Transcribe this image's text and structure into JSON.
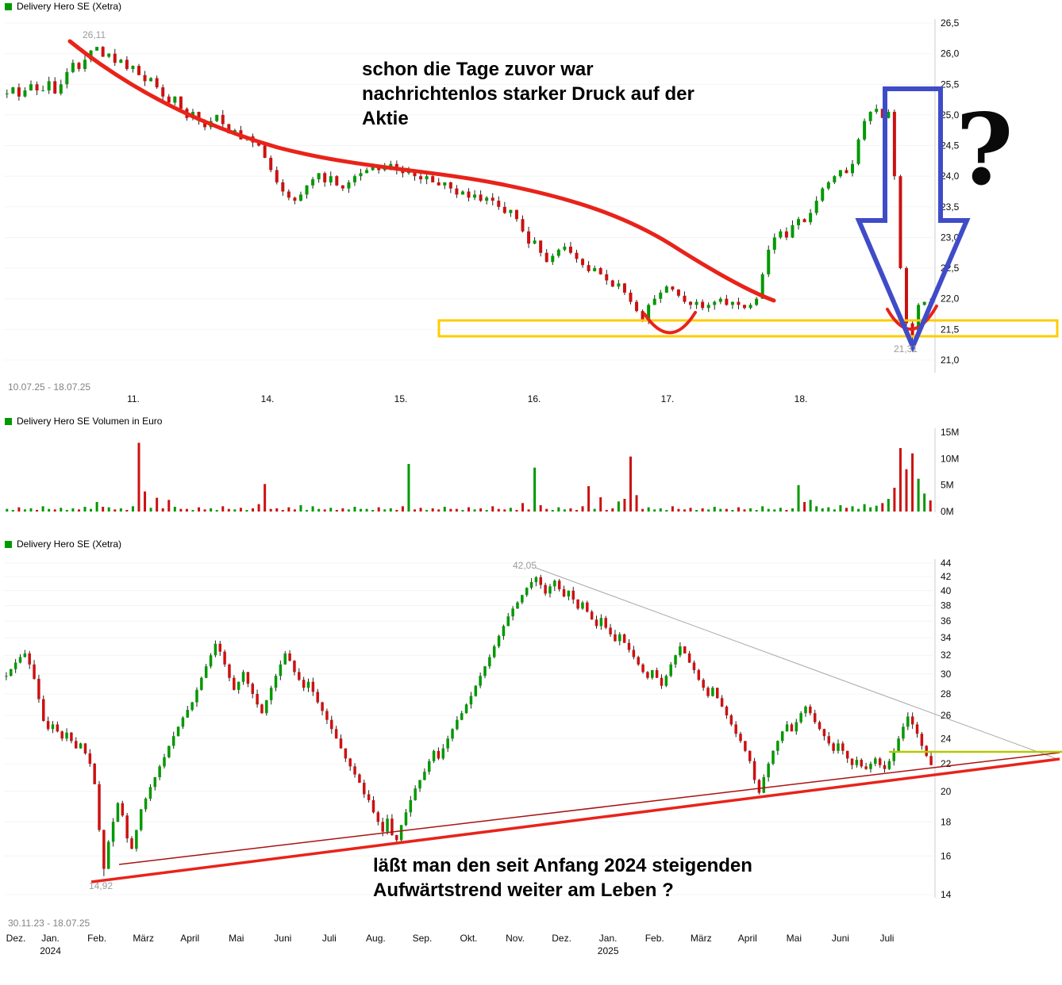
{
  "colors": {
    "candle_up": "#009900",
    "candle_down": "#cc1111",
    "wick": "#222222",
    "trend_curve_red": "#e8231a",
    "v_mark_red": "#e8231a",
    "band_yellow": "#ffcc00",
    "arrow_blue": "#3f4cc8",
    "gray_trendline": "#a8a8a8",
    "rising_red_thick": "#e8231a",
    "rising_red_thin": "#a81212",
    "hline_yellow_green": "#b4c800",
    "axis_line": "#cccccc"
  },
  "annotations": {
    "top_note": {
      "line1": "schon die Tage zuvor war",
      "line2": "nachrichtenlos starker Druck auf der",
      "line3": "Aktie"
    },
    "question_mark": "?",
    "bottom_note": {
      "line1": "läßt man den seit Anfang 2024 steigenden",
      "line2": "Aufwärtstrend weiter am Leben ?"
    }
  },
  "chart_data": [
    {
      "type": "candlestick",
      "title": "Delivery Hero SE (Xetra)",
      "date_range": "10.07.25 - 18.07.25",
      "x_labels": [
        "11.",
        "14.",
        "15.",
        "16.",
        "17.",
        "18."
      ],
      "y_tick_labels": [
        "26,5",
        "26,0",
        "25,5",
        "25,0",
        "24,5",
        "24,0",
        "23,5",
        "23,0",
        "22,5",
        "22,0",
        "21,5",
        "21,0"
      ],
      "ylim": [
        21.0,
        26.5
      ],
      "high_marker": {
        "label": "26,11",
        "value": 26.11
      },
      "low_marker": {
        "label": "21,31",
        "value": 21.31
      },
      "closes": [
        25.35,
        25.45,
        25.3,
        25.4,
        25.5,
        25.4,
        25.4,
        25.55,
        25.35,
        25.5,
        25.7,
        25.85,
        25.75,
        25.9,
        26.05,
        26.11,
        25.95,
        26.0,
        25.85,
        25.9,
        25.75,
        25.8,
        25.65,
        25.55,
        25.6,
        25.45,
        25.3,
        25.2,
        25.3,
        25.1,
        24.95,
        25.05,
        24.9,
        24.8,
        24.9,
        25.0,
        24.85,
        24.7,
        24.75,
        24.6,
        24.65,
        24.55,
        24.5,
        24.3,
        24.1,
        23.9,
        23.75,
        23.65,
        23.6,
        23.7,
        23.85,
        23.95,
        24.05,
        23.9,
        24.0,
        23.85,
        23.8,
        23.9,
        24.0,
        24.05,
        24.1,
        24.15,
        24.1,
        24.15,
        24.2,
        24.1,
        24.05,
        24.1,
        24.0,
        23.95,
        24.0,
        23.9,
        23.85,
        23.9,
        23.8,
        23.7,
        23.75,
        23.65,
        23.7,
        23.6,
        23.65,
        23.6,
        23.5,
        23.4,
        23.45,
        23.3,
        23.1,
        22.9,
        22.95,
        22.75,
        22.6,
        22.7,
        22.8,
        22.85,
        22.75,
        22.65,
        22.55,
        22.45,
        22.5,
        22.4,
        22.3,
        22.2,
        22.25,
        22.1,
        21.95,
        21.8,
        21.65,
        21.9,
        22.0,
        22.1,
        22.2,
        22.15,
        22.05,
        21.95,
        21.9,
        21.95,
        21.85,
        21.9,
        21.95,
        22.0,
        21.9,
        21.95,
        21.9,
        21.85,
        21.9,
        22.0,
        22.4,
        22.8,
        23.0,
        23.1,
        23.0,
        23.2,
        23.3,
        23.25,
        23.4,
        23.6,
        23.8,
        23.9,
        24.0,
        24.1,
        24.05,
        24.2,
        24.6,
        24.9,
        25.05,
        25.1,
        24.95,
        25.05,
        24.0,
        22.5,
        21.6,
        21.4,
        21.9,
        21.95,
        21.9
      ]
    },
    {
      "type": "bar",
      "title": "Delivery Hero SE Volumen in Euro",
      "y_tick_labels": [
        "15M",
        "10M",
        "5M",
        "0M"
      ],
      "ylim_millions": [
        0,
        15
      ],
      "values_millions": [
        0.5,
        0.3,
        0.8,
        0.4,
        0.6,
        0.3,
        1.0,
        0.5,
        0.4,
        0.7,
        0.3,
        0.6,
        0.4,
        0.9,
        0.5,
        1.8,
        0.9,
        0.8,
        0.4,
        0.6,
        0.3,
        1.0,
        13.0,
        3.8,
        0.7,
        2.6,
        0.6,
        2.2,
        0.9,
        0.5,
        0.5,
        0.3,
        0.8,
        0.4,
        0.6,
        0.3,
        1.0,
        0.5,
        0.4,
        0.7,
        0.3,
        0.6,
        1.4,
        5.2,
        0.5,
        0.6,
        0.3,
        0.8,
        0.4,
        1.2,
        0.3,
        1.0,
        0.5,
        0.4,
        0.7,
        0.3,
        0.6,
        0.4,
        0.9,
        0.5,
        0.5,
        0.3,
        0.8,
        0.4,
        0.6,
        0.3,
        1.0,
        9.0,
        0.4,
        0.7,
        0.3,
        0.6,
        0.4,
        0.9,
        0.5,
        0.5,
        0.3,
        0.8,
        0.4,
        0.6,
        0.3,
        1.0,
        0.5,
        0.4,
        0.7,
        0.3,
        1.6,
        0.4,
        8.3,
        1.2,
        0.5,
        0.3,
        0.8,
        0.4,
        0.6,
        0.3,
        1.0,
        4.8,
        0.5,
        2.7,
        0.3,
        0.6,
        1.9,
        2.4,
        10.4,
        3.1,
        0.5,
        0.8,
        0.4,
        0.6,
        0.3,
        1.0,
        0.5,
        0.4,
        0.7,
        0.3,
        0.6,
        0.4,
        0.9,
        0.5,
        0.5,
        0.3,
        0.8,
        0.4,
        0.6,
        0.3,
        1.0,
        0.5,
        0.4,
        0.7,
        0.3,
        0.6,
        5.0,
        1.8,
        2.2,
        1.0,
        0.6,
        0.8,
        0.4,
        1.2,
        0.7,
        1.0,
        0.5,
        1.4,
        0.8,
        1.1,
        1.6,
        2.4,
        4.5,
        12.0,
        8.0,
        11.0,
        6.2,
        3.4,
        2.1
      ]
    },
    {
      "type": "candlestick",
      "title": "Delivery Hero SE (Xetra)",
      "date_range": "30.11.23 - 18.07.25",
      "scale": "log",
      "x_labels": [
        "Dez.",
        "Jan.",
        "Feb.",
        "März",
        "April",
        "Mai",
        "Juni",
        "Juli",
        "Aug.",
        "Sep.",
        "Okt.",
        "Nov.",
        "Dez.",
        "Jan.",
        "Feb.",
        "März",
        "April",
        "Mai",
        "Juni",
        "Juli"
      ],
      "year_labels": [
        {
          "text": "2024",
          "month_index": 1
        },
        {
          "text": "2025",
          "month_index": 13
        }
      ],
      "y_tick_labels": [
        "44",
        "42",
        "40",
        "38",
        "36",
        "34",
        "32",
        "30",
        "28",
        "26",
        "24",
        "22",
        "20",
        "18",
        "16",
        "14"
      ],
      "ylim": [
        14,
        44
      ],
      "high_marker": {
        "label": "42,05",
        "value": 42.05
      },
      "low_marker": {
        "label": "14,92",
        "value": 14.92
      },
      "closes": [
        29.8,
        30.5,
        31.2,
        31.8,
        32.2,
        31.0,
        29.5,
        27.5,
        25.5,
        24.8,
        25.2,
        24.6,
        24.0,
        24.5,
        23.8,
        23.2,
        23.6,
        22.8,
        22.0,
        20.5,
        17.5,
        15.3,
        16.8,
        18.0,
        19.2,
        18.4,
        17.0,
        16.4,
        17.5,
        18.8,
        19.5,
        20.3,
        21.0,
        21.8,
        22.5,
        23.4,
        24.2,
        25.0,
        25.8,
        26.5,
        27.2,
        28.4,
        29.6,
        30.8,
        32.0,
        33.3,
        32.4,
        31.0,
        29.6,
        28.4,
        29.2,
        30.2,
        29.0,
        28.0,
        27.0,
        26.2,
        27.4,
        28.6,
        29.8,
        31.0,
        32.2,
        31.4,
        30.2,
        29.4,
        28.6,
        29.2,
        28.2,
        27.2,
        26.4,
        25.6,
        24.8,
        24.0,
        23.2,
        22.4,
        21.8,
        21.2,
        20.6,
        19.8,
        19.4,
        18.6,
        18.0,
        17.4,
        18.2,
        17.2,
        16.9,
        17.8,
        18.6,
        19.4,
        20.2,
        20.8,
        21.4,
        22.2,
        23.0,
        22.4,
        23.2,
        24.0,
        24.8,
        25.6,
        26.2,
        27.0,
        27.8,
        28.8,
        29.8,
        30.8,
        31.8,
        33.0,
        34.2,
        35.4,
        36.6,
        37.6,
        38.4,
        39.4,
        40.4,
        41.2,
        41.9,
        40.8,
        39.6,
        40.6,
        41.4,
        40.2,
        39.2,
        40.0,
        38.8,
        37.6,
        38.4,
        37.2,
        36.2,
        35.4,
        36.4,
        35.2,
        34.4,
        33.6,
        34.4,
        33.4,
        32.6,
        31.8,
        31.0,
        30.2,
        29.6,
        30.4,
        29.6,
        28.8,
        29.8,
        31.0,
        32.0,
        33.0,
        32.2,
        31.2,
        30.4,
        29.4,
        28.6,
        27.8,
        28.6,
        27.6,
        26.8,
        26.0,
        25.2,
        24.4,
        23.8,
        23.0,
        22.2,
        20.8,
        19.9,
        21.0,
        22.0,
        23.0,
        23.8,
        24.6,
        25.2,
        24.6,
        25.4,
        26.2,
        26.8,
        26.2,
        25.4,
        24.8,
        24.2,
        23.6,
        23.0,
        23.6,
        23.0,
        22.4,
        21.9,
        22.3,
        21.8,
        21.6,
        22.0,
        22.4,
        21.9,
        21.6,
        22.2,
        23.0,
        24.0,
        25.0,
        25.9,
        25.2,
        24.4,
        23.4,
        22.6,
        21.9
      ]
    }
  ]
}
